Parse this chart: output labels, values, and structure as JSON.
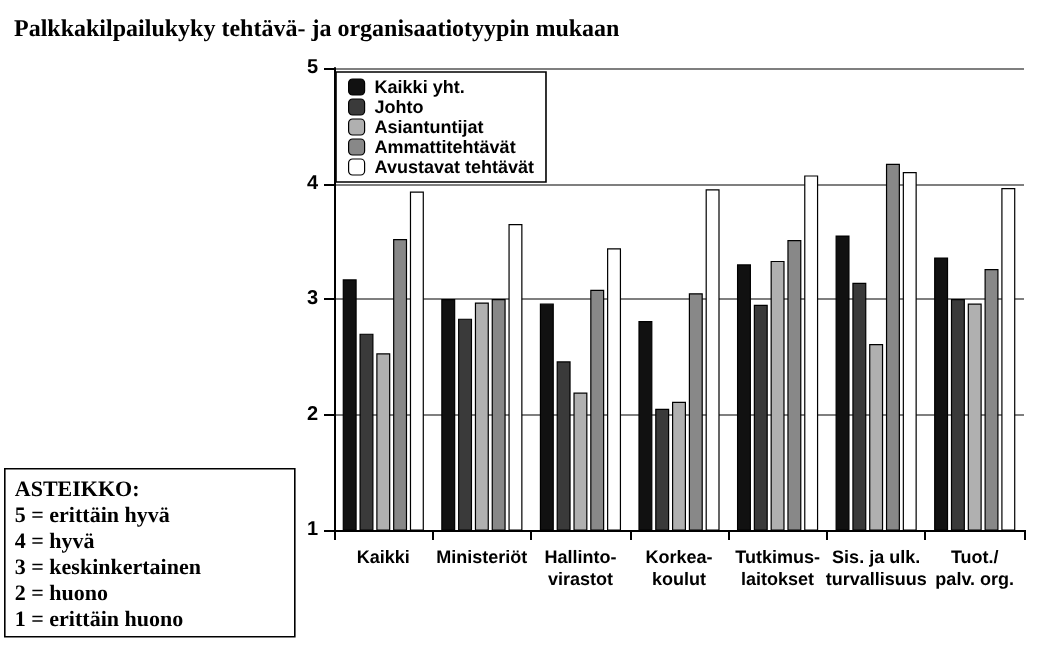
{
  "chart_data": {
    "type": "bar",
    "title": "Palkkakilpailukyky tehtävä- ja organisaatiotyypin mukaan",
    "categories": [
      "Kaikki",
      "Ministeriöt",
      "Hallinto-\nvirastot",
      "Korkea-\nkoulut",
      "Tutkimus-\nlaitokset",
      "Sis. ja ulk.\nturvallisuus",
      "Tuot./\npalv. org."
    ],
    "series": [
      {
        "name": "Kaikki yht.",
        "color": "#111111",
        "values": [
          3.17,
          3.0,
          2.96,
          2.81,
          3.3,
          3.55,
          3.36
        ]
      },
      {
        "name": "Johto",
        "color": "#3a3a3a",
        "values": [
          2.7,
          2.83,
          2.46,
          2.05,
          2.95,
          3.14,
          3.0
        ]
      },
      {
        "name": "Asiantuntijat",
        "color": "#b0b0b0",
        "values": [
          2.53,
          2.97,
          2.19,
          2.11,
          3.33,
          2.61,
          2.96
        ]
      },
      {
        "name": "Ammattitehtävät",
        "color": "#888888",
        "values": [
          3.52,
          3.0,
          3.08,
          3.05,
          3.51,
          4.17,
          3.26
        ]
      },
      {
        "name": "Avustavat tehtävät",
        "color": "#ffffff",
        "values": [
          3.93,
          3.65,
          3.44,
          3.95,
          4.07,
          4.1,
          3.96
        ]
      }
    ],
    "ylim": [
      1,
      5
    ],
    "yticks": [
      1,
      2,
      3,
      4,
      5
    ],
    "grid": "y",
    "legend": "top left",
    "annotations": [
      "ASTEIKKO:",
      "5 = erittäin hyvä",
      "4 = hyvä",
      "3 = keskinkertainen",
      "2 = huono",
      "1 = erittäin huono"
    ]
  }
}
